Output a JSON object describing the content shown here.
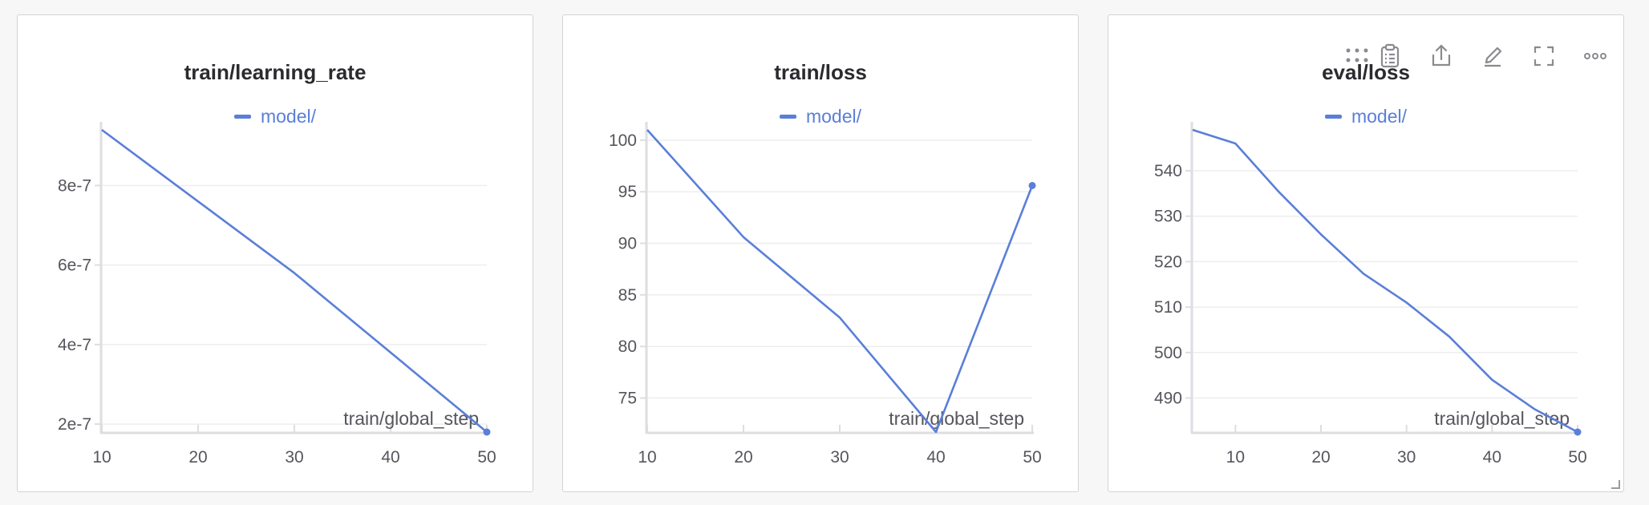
{
  "legend_label": "model/",
  "xlabel": "train/global_step",
  "colors": {
    "series": "#5a7fd8",
    "axis": "#dedee2",
    "grid": "#eeeeee",
    "tick_text": "#55555c"
  },
  "toolbar_icons": [
    "drag-handle-icon",
    "clipboard-icon",
    "share-icon",
    "edit-icon",
    "fullscreen-icon",
    "more-icon"
  ],
  "chart_data": [
    {
      "type": "line",
      "title": "train/learning_rate",
      "xlabel": "train/global_step",
      "x": [
        10,
        20,
        30,
        40,
        50
      ],
      "series": [
        {
          "name": "model/",
          "values": [
            9.4e-07,
            7.6e-07,
            5.8e-07,
            3.8e-07,
            1.8e-07
          ]
        }
      ],
      "xlim": [
        10,
        50
      ],
      "ylim": [
        1.8e-07,
        9.4e-07
      ],
      "xticks": [
        "10",
        "20",
        "30",
        "40",
        "50"
      ],
      "yticks": [
        {
          "value": 2e-07,
          "label": "2e-7"
        },
        {
          "value": 4e-07,
          "label": "4e-7"
        },
        {
          "value": 6e-07,
          "label": "6e-7"
        },
        {
          "value": 8e-07,
          "label": "8e-7"
        }
      ],
      "grid": true
    },
    {
      "type": "line",
      "title": "train/loss",
      "xlabel": "train/global_step",
      "x": [
        10,
        20,
        30,
        40,
        50
      ],
      "series": [
        {
          "name": "model/",
          "values": [
            101.0,
            90.6,
            82.8,
            71.7,
            95.6
          ]
        }
      ],
      "xlim": [
        10,
        50
      ],
      "ylim": [
        71.7,
        101.0
      ],
      "xticks": [
        "10",
        "20",
        "30",
        "40",
        "50"
      ],
      "yticks": [
        {
          "value": 75,
          "label": "75"
        },
        {
          "value": 80,
          "label": "80"
        },
        {
          "value": 85,
          "label": "85"
        },
        {
          "value": 90,
          "label": "90"
        },
        {
          "value": 95,
          "label": "95"
        },
        {
          "value": 100,
          "label": "100"
        }
      ],
      "grid": true
    },
    {
      "type": "line",
      "title": "eval/loss",
      "xlabel": "train/global_step",
      "x": [
        5,
        10,
        15,
        20,
        25,
        30,
        35,
        40,
        45,
        50
      ],
      "series": [
        {
          "name": "model/",
          "values": [
            549.0,
            546.0,
            535.5,
            526.0,
            517.3,
            511.0,
            503.5,
            494.0,
            487.5,
            482.5
          ]
        }
      ],
      "xlim": [
        5,
        50
      ],
      "ylim": [
        482.5,
        549.0
      ],
      "xticks": [
        "10",
        "20",
        "30",
        "40",
        "50"
      ],
      "yticks": [
        {
          "value": 490,
          "label": "490"
        },
        {
          "value": 500,
          "label": "500"
        },
        {
          "value": 510,
          "label": "510"
        },
        {
          "value": 520,
          "label": "520"
        },
        {
          "value": 530,
          "label": "530"
        },
        {
          "value": 540,
          "label": "540"
        }
      ],
      "grid": true
    }
  ]
}
